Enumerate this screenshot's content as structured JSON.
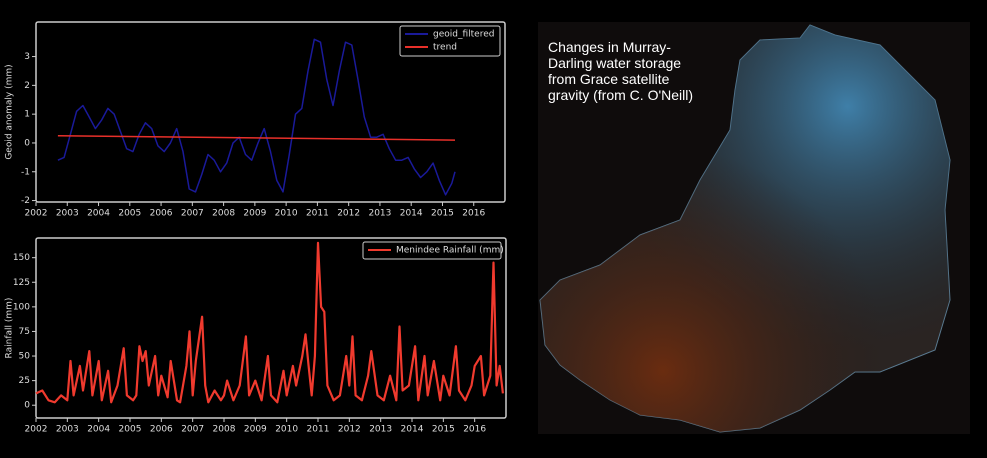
{
  "chart_data": [
    {
      "type": "line",
      "ylabel": "Geoid anomaly (mm)",
      "xlim": [
        2002,
        2017
      ],
      "ylim": [
        -2.05,
        4.2
      ],
      "xticks": [
        2002,
        2003,
        2004,
        2005,
        2006,
        2007,
        2008,
        2009,
        2010,
        2011,
        2012,
        2013,
        2014,
        2015,
        2016
      ],
      "yticks": [
        -2,
        -1,
        0,
        1,
        2,
        3
      ],
      "legend": "upper right",
      "series": [
        {
          "name": "geoid_filtered",
          "color": "#1a1a9a",
          "x": [
            2002.7,
            2002.9,
            2003.1,
            2003.3,
            2003.5,
            2003.7,
            2003.9,
            2004.1,
            2004.3,
            2004.5,
            2004.7,
            2004.9,
            2005.1,
            2005.3,
            2005.5,
            2005.7,
            2005.9,
            2006.1,
            2006.3,
            2006.5,
            2006.7,
            2006.9,
            2007.1,
            2007.3,
            2007.5,
            2007.7,
            2007.9,
            2008.1,
            2008.3,
            2008.5,
            2008.7,
            2008.9,
            2009.1,
            2009.3,
            2009.5,
            2009.7,
            2009.9,
            2010.1,
            2010.3,
            2010.5,
            2010.7,
            2010.9,
            2011.1,
            2011.3,
            2011.5,
            2011.7,
            2011.9,
            2012.1,
            2012.3,
            2012.5,
            2012.7,
            2012.9,
            2013.1,
            2013.3,
            2013.5,
            2013.7,
            2013.9,
            2014.1,
            2014.3,
            2014.5,
            2014.7,
            2014.9,
            2015.1,
            2015.3,
            2015.4
          ],
          "values": [
            -0.6,
            -0.5,
            0.3,
            1.1,
            1.3,
            0.9,
            0.5,
            0.8,
            1.2,
            1.0,
            0.4,
            -0.2,
            -0.3,
            0.3,
            0.7,
            0.5,
            -0.1,
            -0.3,
            0.0,
            0.5,
            -0.3,
            -1.6,
            -1.7,
            -1.1,
            -0.4,
            -0.6,
            -1.0,
            -0.7,
            0.0,
            0.2,
            -0.4,
            -0.6,
            0.0,
            0.5,
            -0.3,
            -1.3,
            -1.7,
            -0.4,
            1.0,
            1.2,
            2.5,
            3.6,
            3.5,
            2.2,
            1.3,
            2.5,
            3.5,
            3.4,
            2.2,
            0.9,
            0.2,
            0.2,
            0.3,
            -0.2,
            -0.6,
            -0.6,
            -0.5,
            -0.9,
            -1.2,
            -1.0,
            -0.7,
            -1.3,
            -1.8,
            -1.4,
            -1.0
          ]
        },
        {
          "name": "trend",
          "color": "#e8302a",
          "x": [
            2002.7,
            2015.4
          ],
          "values": [
            0.25,
            0.1
          ]
        }
      ]
    },
    {
      "type": "line",
      "ylabel": "Rainfall (mm)",
      "xlim": [
        2002,
        2017
      ],
      "ylim": [
        -13,
        170
      ],
      "xticks": [
        2002,
        2003,
        2004,
        2005,
        2006,
        2007,
        2008,
        2009,
        2010,
        2011,
        2012,
        2013,
        2014,
        2015,
        2016
      ],
      "yticks": [
        0,
        25,
        50,
        75,
        100,
        125,
        150
      ],
      "legend": "upper right",
      "series": [
        {
          "name": "Menindee Rainfall (mm)",
          "color": "#f03a2e",
          "x": [
            2002.0,
            2002.2,
            2002.4,
            2002.6,
            2002.8,
            2003.0,
            2003.1,
            2003.2,
            2003.4,
            2003.5,
            2003.7,
            2003.8,
            2004.0,
            2004.1,
            2004.3,
            2004.4,
            2004.6,
            2004.8,
            2004.9,
            2005.1,
            2005.2,
            2005.3,
            2005.4,
            2005.5,
            2005.6,
            2005.8,
            2005.9,
            2006.0,
            2006.2,
            2006.3,
            2006.5,
            2006.6,
            2006.8,
            2006.9,
            2007.0,
            2007.1,
            2007.3,
            2007.4,
            2007.5,
            2007.7,
            2007.9,
            2008.0,
            2008.1,
            2008.3,
            2008.5,
            2008.6,
            2008.7,
            2008.8,
            2009.0,
            2009.2,
            2009.4,
            2009.5,
            2009.7,
            2009.9,
            2010.0,
            2010.2,
            2010.3,
            2010.5,
            2010.6,
            2010.7,
            2010.8,
            2010.9,
            2011.0,
            2011.1,
            2011.2,
            2011.3,
            2011.5,
            2011.7,
            2011.9,
            2012.0,
            2012.1,
            2012.2,
            2012.4,
            2012.6,
            2012.7,
            2012.9,
            2013.1,
            2013.3,
            2013.5,
            2013.6,
            2013.7,
            2013.9,
            2014.1,
            2014.2,
            2014.4,
            2014.5,
            2014.7,
            2014.9,
            2015.0,
            2015.2,
            2015.4,
            2015.5,
            2015.7,
            2015.9,
            2016.0,
            2016.2,
            2016.3,
            2016.5,
            2016.6,
            2016.7,
            2016.8,
            2016.9
          ],
          "values": [
            12,
            15,
            5,
            3,
            10,
            5,
            45,
            10,
            40,
            15,
            55,
            10,
            45,
            5,
            35,
            3,
            20,
            58,
            10,
            5,
            10,
            60,
            45,
            55,
            20,
            50,
            10,
            30,
            8,
            45,
            5,
            3,
            40,
            75,
            10,
            45,
            90,
            20,
            3,
            15,
            5,
            10,
            25,
            5,
            20,
            45,
            70,
            10,
            25,
            5,
            50,
            10,
            3,
            35,
            10,
            40,
            20,
            50,
            72,
            40,
            10,
            50,
            165,
            100,
            95,
            20,
            5,
            10,
            50,
            20,
            70,
            10,
            5,
            30,
            55,
            10,
            5,
            30,
            5,
            80,
            15,
            20,
            60,
            5,
            50,
            10,
            45,
            5,
            30,
            10,
            60,
            15,
            5,
            20,
            40,
            50,
            10,
            30,
            145,
            20,
            40,
            12
          ]
        }
      ]
    }
  ],
  "map": {
    "caption_lines": [
      "Changes in Murray-",
      "Darling water storage",
      "from Grace satellite",
      "gravity (from C. O'Neill)"
    ]
  }
}
